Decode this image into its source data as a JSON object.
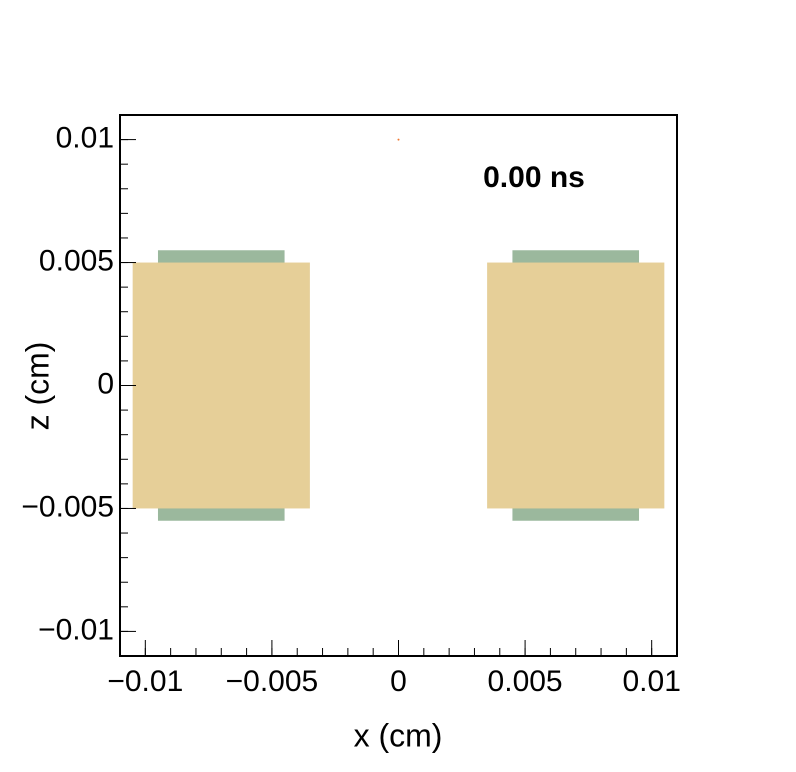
{
  "chart_data": {
    "type": "rect",
    "annotation": "0.00 ns",
    "xlabel": "x (cm)",
    "ylabel": "z (cm)",
    "xlim": [
      -0.011,
      0.011
    ],
    "ylim": [
      -0.011,
      0.011
    ],
    "xticks": [
      {
        "value": -0.01,
        "label": "−0.01"
      },
      {
        "value": -0.005,
        "label": "−0.005"
      },
      0,
      0.005,
      0.01
    ],
    "yticks": [
      {
        "value": -0.01,
        "label": "−0.01"
      },
      {
        "value": -0.005,
        "label": "−0.005"
      },
      0,
      0.005,
      0.01
    ],
    "xminorticks": [
      -0.011,
      -0.01,
      -0.009,
      -0.008,
      -0.007,
      -0.006,
      -0.005,
      -0.004,
      -0.003,
      -0.002,
      -0.001,
      0,
      0.001,
      0.002,
      0.003,
      0.004,
      0.005,
      0.006,
      0.007,
      0.008,
      0.009,
      0.01,
      0.011
    ],
    "yminorticks": [
      -0.011,
      -0.01,
      -0.009,
      -0.008,
      -0.007,
      -0.006,
      -0.005,
      -0.004,
      -0.003,
      -0.002,
      -0.001,
      0,
      0.001,
      0.002,
      0.003,
      0.004,
      0.005,
      0.006,
      0.007,
      0.008,
      0.009,
      0.01,
      0.011
    ],
    "rects": [
      {
        "x": [
          -0.0095,
          -0.0045
        ],
        "y": [
          -0.0055,
          0.0055
        ],
        "color": "#9bb89d"
      },
      {
        "x": [
          0.0045,
          0.0095
        ],
        "y": [
          -0.0055,
          0.0055
        ],
        "color": "#9bb89d"
      },
      {
        "x": [
          -0.0105,
          -0.0035
        ],
        "y": [
          -0.005,
          0.005
        ],
        "color": "#e6cf98"
      },
      {
        "x": [
          0.0035,
          0.0105
        ],
        "y": [
          -0.005,
          0.005
        ],
        "color": "#e6cf98"
      }
    ],
    "points": [
      {
        "x": 0,
        "y": 0.01,
        "color": "#f07830"
      }
    ]
  }
}
